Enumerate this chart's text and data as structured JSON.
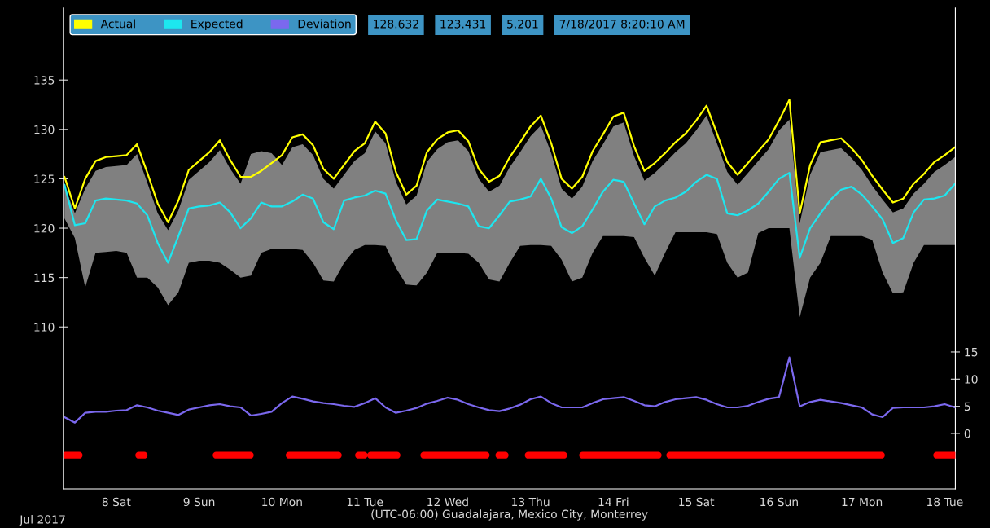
{
  "chart_data": {
    "type": "line",
    "x": [
      "2017-07-07T09:00",
      "2017-07-07T12:00",
      "2017-07-07T15:00",
      "2017-07-07T18:00",
      "2017-07-07T21:00",
      "2017-07-08T00:00",
      "2017-07-08T03:00",
      "2017-07-08T06:00",
      "2017-07-08T09:00",
      "2017-07-08T12:00",
      "2017-07-08T15:00",
      "2017-07-08T18:00",
      "2017-07-08T21:00",
      "2017-07-09T00:00",
      "2017-07-09T03:00",
      "2017-07-09T06:00",
      "2017-07-09T09:00",
      "2017-07-09T12:00",
      "2017-07-09T15:00",
      "2017-07-09T18:00",
      "2017-07-09T21:00",
      "2017-07-10T00:00",
      "2017-07-10T03:00",
      "2017-07-10T06:00",
      "2017-07-10T09:00",
      "2017-07-10T12:00",
      "2017-07-10T15:00",
      "2017-07-10T18:00",
      "2017-07-10T21:00",
      "2017-07-11T00:00",
      "2017-07-11T03:00",
      "2017-07-11T06:00",
      "2017-07-11T09:00",
      "2017-07-11T12:00",
      "2017-07-11T15:00",
      "2017-07-11T18:00",
      "2017-07-11T21:00",
      "2017-07-12T00:00",
      "2017-07-12T03:00",
      "2017-07-12T06:00",
      "2017-07-12T09:00",
      "2017-07-12T12:00",
      "2017-07-12T15:00",
      "2017-07-12T18:00",
      "2017-07-12T21:00",
      "2017-07-13T00:00",
      "2017-07-13T03:00",
      "2017-07-13T06:00",
      "2017-07-13T09:00",
      "2017-07-13T12:00",
      "2017-07-13T15:00",
      "2017-07-13T18:00",
      "2017-07-13T21:00",
      "2017-07-14T00:00",
      "2017-07-14T03:00",
      "2017-07-14T06:00",
      "2017-07-14T09:00",
      "2017-07-14T12:00",
      "2017-07-14T15:00",
      "2017-07-14T18:00",
      "2017-07-14T21:00",
      "2017-07-15T00:00",
      "2017-07-15T03:00",
      "2017-07-15T06:00",
      "2017-07-15T09:00",
      "2017-07-15T12:00",
      "2017-07-15T15:00",
      "2017-07-15T18:00",
      "2017-07-15T21:00",
      "2017-07-16T00:00",
      "2017-07-16T03:00",
      "2017-07-16T06:00",
      "2017-07-16T09:00",
      "2017-07-16T12:00",
      "2017-07-16T15:00",
      "2017-07-16T18:00",
      "2017-07-16T21:00",
      "2017-07-17T00:00",
      "2017-07-17T03:00",
      "2017-07-17T06:00",
      "2017-07-17T09:00",
      "2017-07-17T12:00",
      "2017-07-17T15:00",
      "2017-07-17T18:00",
      "2017-07-17T21:00",
      "2017-07-18T00:00",
      "2017-07-18T03:00"
    ],
    "series": [
      {
        "name": "Actual",
        "color": "#ffff00",
        "values": [
          125.2,
          122.0,
          125.0,
          126.8,
          127.2,
          127.3,
          127.4,
          128.5,
          125.6,
          122.5,
          120.6,
          122.8,
          125.9,
          126.8,
          127.7,
          128.9,
          126.9,
          125.2,
          125.2,
          125.8,
          126.6,
          127.4,
          129.2,
          129.5,
          128.4,
          126.0,
          125.0,
          126.4,
          127.8,
          128.6,
          130.8,
          129.6,
          125.7,
          123.4,
          124.3,
          127.7,
          129.0,
          129.7,
          129.9,
          128.8,
          126.0,
          124.7,
          125.3,
          127.2,
          128.7,
          130.3,
          131.4,
          128.6,
          125.0,
          124.0,
          125.2,
          127.8,
          129.5,
          131.3,
          131.7,
          128.3,
          125.8,
          126.6,
          127.6,
          128.7,
          129.6,
          130.9,
          132.4,
          129.6,
          126.7,
          125.4,
          126.6,
          127.8,
          129.0,
          130.9,
          133.0,
          121.5,
          126.4,
          128.7,
          128.9,
          129.1,
          128.1,
          126.9,
          125.3,
          123.9,
          122.6,
          123.0,
          124.5,
          125.5,
          126.7,
          127.4,
          128.2
        ]
      },
      {
        "name": "Expected",
        "color": "#1de6ef",
        "values": [
          124.4,
          120.3,
          120.5,
          122.8,
          123.0,
          122.9,
          122.8,
          122.5,
          121.3,
          118.5,
          116.5,
          119.2,
          122.0,
          122.2,
          122.3,
          122.6,
          121.6,
          120.0,
          121.0,
          122.6,
          122.2,
          122.2,
          122.7,
          123.4,
          123.0,
          120.6,
          119.9,
          122.8,
          123.1,
          123.3,
          123.8,
          123.5,
          120.8,
          118.8,
          118.9,
          121.8,
          122.9,
          122.7,
          122.5,
          122.2,
          120.2,
          120.0,
          121.3,
          122.7,
          122.9,
          123.2,
          125.0,
          123.0,
          120.1,
          119.5,
          120.2,
          121.9,
          123.7,
          124.9,
          124.7,
          122.5,
          120.4,
          122.2,
          122.8,
          123.1,
          123.7,
          124.7,
          125.4,
          125.0,
          121.5,
          121.3,
          121.8,
          122.5,
          123.7,
          125.0,
          125.6,
          117.0,
          120.0,
          121.5,
          122.9,
          123.9,
          124.2,
          123.4,
          122.2,
          120.9,
          118.5,
          119.0,
          121.6,
          122.9,
          123.0,
          123.3,
          124.5
        ],
        "lower": [
          121,
          119,
          114,
          117.5,
          117.6,
          117.7,
          117.5,
          115,
          115,
          114,
          112.2,
          113.5,
          116.5,
          116.7,
          116.7,
          116.5,
          115.8,
          115,
          115.2,
          117.5,
          117.9,
          117.9,
          117.9,
          117.8,
          116.5,
          114.7,
          114.6,
          116.5,
          117.8,
          118.3,
          118.3,
          118.2,
          116,
          114.3,
          114.2,
          115.5,
          117.5,
          117.5,
          117.5,
          117.4,
          116.5,
          114.8,
          114.6,
          116.5,
          118.2,
          118.3,
          118.3,
          118.2,
          116.8,
          114.6,
          115,
          117.5,
          119.2,
          119.2,
          119.2,
          119.1,
          117,
          115.2,
          117.5,
          119.6,
          119.6,
          119.6,
          119.6,
          119.4,
          116.5,
          115,
          115.5,
          119.5,
          120,
          120,
          120,
          111,
          115,
          116.5,
          119.2,
          119.2,
          119.2,
          119.2,
          118.8,
          115.5,
          113.4,
          113.5,
          116.5,
          118.3,
          118.3,
          118.3,
          118.3
        ],
        "upper": [
          124.2,
          121.5,
          124,
          125.8,
          126.2,
          126.3,
          126.4,
          127.5,
          124.6,
          121.5,
          119.8,
          121.8,
          124.9,
          125.8,
          126.7,
          127.9,
          126,
          124.5,
          127.5,
          127.8,
          127.6,
          126.4,
          128.2,
          128.5,
          127.4,
          125,
          124,
          125.4,
          126.8,
          127.6,
          129.8,
          128.6,
          124.7,
          122.4,
          123.3,
          126.7,
          128,
          128.7,
          128.9,
          127.8,
          125,
          123.7,
          124.3,
          126.2,
          127.7,
          129.3,
          130.4,
          127.6,
          124,
          123,
          124.2,
          126.8,
          128.5,
          130.3,
          130.7,
          127.3,
          124.8,
          125.6,
          126.6,
          127.7,
          128.6,
          129.9,
          131.4,
          128.6,
          125.7,
          124.4,
          125.6,
          126.8,
          128,
          129.9,
          131,
          120.5,
          125.4,
          127.7,
          127.9,
          128.1,
          127.1,
          125.9,
          124.3,
          122.9,
          121.6,
          122,
          123.5,
          124.5,
          125.7,
          126.4,
          127.2
        ]
      },
      {
        "name": "Deviation",
        "color": "#7b68ee",
        "axis": "y2",
        "values": [
          3.0,
          2.0,
          3.8,
          4.0,
          4.0,
          4.2,
          4.3,
          5.2,
          4.8,
          4.2,
          3.8,
          3.4,
          4.4,
          4.8,
          5.2,
          5.4,
          5.0,
          4.8,
          3.3,
          3.6,
          4.0,
          5.6,
          6.8,
          6.4,
          5.9,
          5.6,
          5.4,
          5.1,
          4.9,
          5.6,
          6.5,
          4.8,
          3.8,
          4.2,
          4.7,
          5.5,
          6.0,
          6.6,
          6.2,
          5.4,
          4.8,
          4.3,
          4.1,
          4.6,
          5.3,
          6.3,
          6.8,
          5.6,
          4.8,
          4.8,
          4.8,
          5.6,
          6.3,
          6.5,
          6.7,
          6.0,
          5.2,
          5.0,
          5.8,
          6.3,
          6.5,
          6.7,
          6.2,
          5.4,
          4.8,
          4.8,
          5.1,
          5.8,
          6.4,
          6.7,
          14.0,
          5.0,
          5.8,
          6.2,
          5.9,
          5.6,
          5.2,
          4.8,
          3.5,
          3.0,
          4.7,
          4.8,
          4.8,
          4.8,
          5.0,
          5.4,
          4.8
        ]
      },
      {
        "color": "#ff0000",
        "axis": "y2",
        "x": [
          "2017-07-07T09:15",
          "2017-07-07T13:15",
          "2017-07-07T13:16",
          "2017-07-08T06:30",
          "2017-07-08T08:05",
          "2017-07-08T08:06",
          "2017-07-09T04:55",
          "2017-07-09T14:50",
          "2017-07-09T14:51",
          "2017-07-10T02:05",
          "2017-07-10T16:20",
          "2017-07-10T16:21",
          "2017-07-10T22:10",
          "2017-07-10T23:50",
          "2017-07-10T23:51",
          "2017-07-11T01:40",
          "2017-07-11T09:20",
          "2017-07-11T09:21",
          "2017-07-11T17:05",
          "2017-07-12T11:10",
          "2017-07-12T11:11",
          "2017-07-12T14:50",
          "2017-07-12T16:40",
          "2017-07-12T16:41",
          "2017-07-12T23:20",
          "2017-07-13T09:40",
          "2017-07-13T09:41",
          "2017-07-13T15:05",
          "2017-07-14T13:00",
          "2017-07-14T13:01",
          "2017-07-14T16:20",
          "2017-07-17T05:40",
          "2017-07-17T05:41",
          "2017-07-17T21:40",
          "2017-07-18T02:55"
        ],
        "values": [
          -4,
          -4,
          null,
          -4,
          -4,
          null,
          -4,
          -4,
          null,
          -4,
          -4,
          null,
          -4,
          -4,
          null,
          -4,
          -4,
          null,
          -4,
          -4,
          null,
          -4,
          -4,
          null,
          -4,
          -4,
          null,
          -4,
          -4,
          null,
          -4,
          -4,
          null,
          -4,
          -4
        ]
      }
    ],
    "xlim": [
      "2017-07-07T08:40",
      "2017-07-18T03:05"
    ],
    "xticks": [
      {
        "value": "2017-07-08",
        "label": "8 Sat"
      },
      {
        "value": "2017-07-09",
        "label": "9 Sun"
      },
      {
        "value": "2017-07-10",
        "label": "10 Mon"
      },
      {
        "value": "2017-07-11",
        "label": "11 Tue"
      },
      {
        "value": "2017-07-12",
        "label": "12 Wed"
      },
      {
        "value": "2017-07-13",
        "label": "13 Thu"
      },
      {
        "value": "2017-07-14",
        "label": "14 Fri"
      },
      {
        "value": "2017-07-15",
        "label": "15 Sat"
      },
      {
        "value": "2017-07-16",
        "label": "16 Sun"
      },
      {
        "value": "2017-07-17",
        "label": "17 Mon"
      },
      {
        "value": "2017-07-18",
        "label": "18 Tue"
      }
    ],
    "ylim": [
      93.6,
      142.3
    ],
    "yticks": [
      110,
      115,
      120,
      125,
      130,
      135
    ],
    "y2lim": [
      -10.2,
      78.3
    ],
    "y2ticks": [
      0,
      5,
      10,
      15
    ],
    "xlabel": "(UTC-06:00) Guadalajara, Mexico City, Monterrey",
    "legend": "top left",
    "grid": false,
    "annotations": [
      "128.632",
      "123.431",
      "5.201",
      "7/18/2017 8:20:10 AM",
      "Jul 2017"
    ]
  }
}
